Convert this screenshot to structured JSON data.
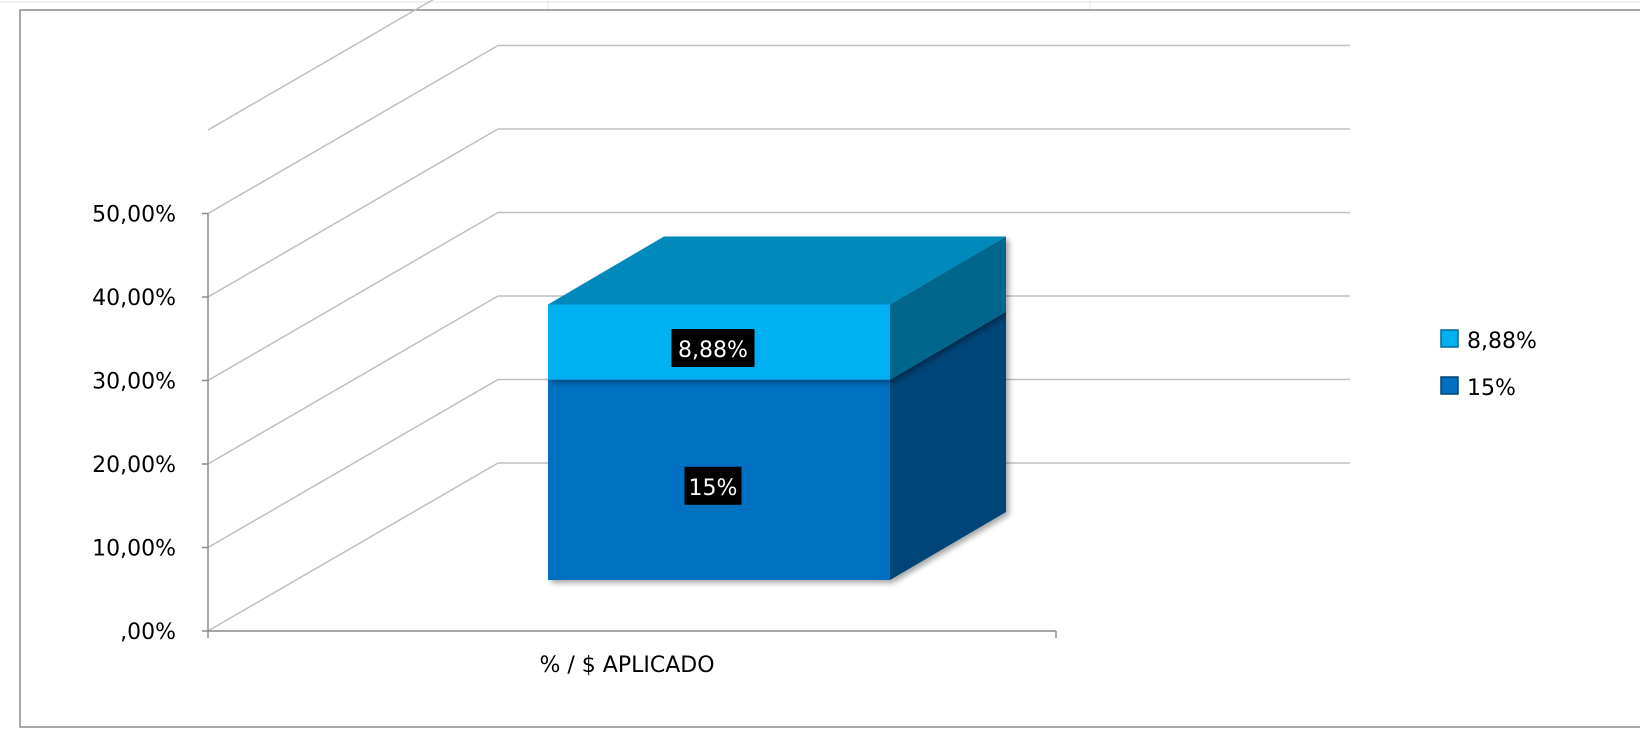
{
  "chart_data": {
    "type": "bar",
    "style": "3d-stacked-column",
    "categories": [
      "% / $ APLICADO"
    ],
    "series": [
      {
        "name": "15%",
        "values": [
          24
        ],
        "color": "#0070C0",
        "label": "15%"
      },
      {
        "name": "8,88%",
        "values": [
          9
        ],
        "color": "#00B0F0",
        "label": "8,88%"
      }
    ],
    "y_ticks": [
      ",00%",
      "10,00%",
      "20,00%",
      "30,00%",
      "40,00%",
      "50,00%"
    ],
    "ylim": [
      0,
      50
    ],
    "grid": true,
    "legend_position": "right",
    "legend": [
      {
        "label": "8,88%",
        "color": "#00B0F0"
      },
      {
        "label": "15%",
        "color": "#0070C0"
      }
    ]
  }
}
